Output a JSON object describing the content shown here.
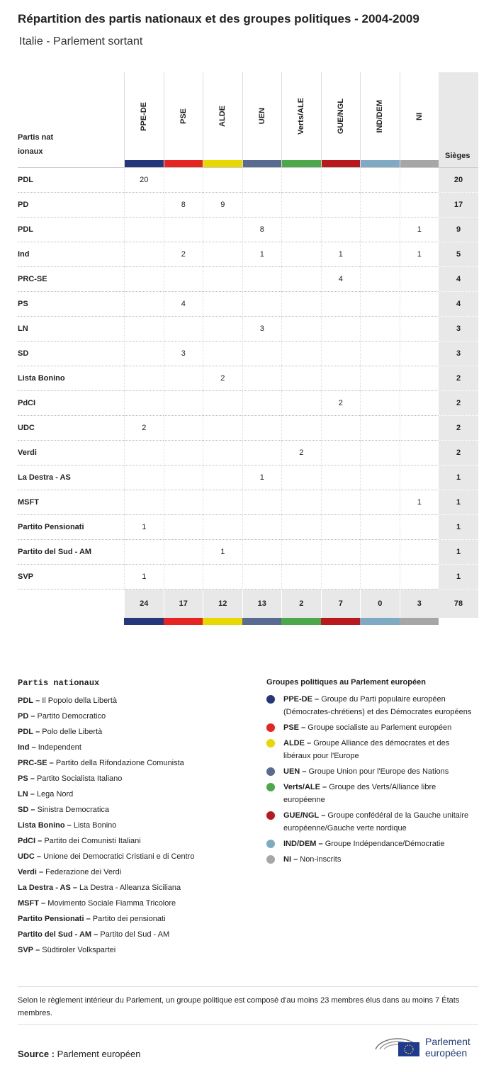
{
  "header": {
    "title": "Répartition des partis nationaux et des groupes politiques - 2004-2009",
    "subtitle": "Italie - Parlement sortant"
  },
  "table": {
    "corner": "Partis nationaux",
    "total_header": "Sièges",
    "groups": [
      {
        "name": "PPE-DE",
        "color": "#26367a"
      },
      {
        "name": "PSE",
        "color": "#e52521"
      },
      {
        "name": "ALDE",
        "color": "#e6d800"
      },
      {
        "name": "UEN",
        "color": "#5a6b92"
      },
      {
        "name": "Verts/ALE",
        "color": "#4ca84a"
      },
      {
        "name": "GUE/NGL",
        "color": "#b8191e"
      },
      {
        "name": "IND/DEM",
        "color": "#80a9c3"
      },
      {
        "name": "NI",
        "color": "#a6a6a6"
      }
    ],
    "rows": [
      {
        "party": "PDL",
        "cells": [
          20,
          null,
          null,
          null,
          null,
          null,
          null,
          null
        ],
        "total": 20
      },
      {
        "party": "PD",
        "cells": [
          null,
          8,
          9,
          null,
          null,
          null,
          null,
          null
        ],
        "total": 17
      },
      {
        "party": "PDL",
        "cells": [
          null,
          null,
          null,
          8,
          null,
          null,
          null,
          1
        ],
        "total": 9
      },
      {
        "party": "Ind",
        "cells": [
          null,
          2,
          null,
          1,
          null,
          1,
          null,
          1
        ],
        "total": 5
      },
      {
        "party": "PRC-SE",
        "cells": [
          null,
          null,
          null,
          null,
          null,
          4,
          null,
          null
        ],
        "total": 4
      },
      {
        "party": "PS",
        "cells": [
          null,
          4,
          null,
          null,
          null,
          null,
          null,
          null
        ],
        "total": 4
      },
      {
        "party": "LN",
        "cells": [
          null,
          null,
          null,
          3,
          null,
          null,
          null,
          null
        ],
        "total": 3
      },
      {
        "party": "SD",
        "cells": [
          null,
          3,
          null,
          null,
          null,
          null,
          null,
          null
        ],
        "total": 3
      },
      {
        "party": "Lista Bonino",
        "cells": [
          null,
          null,
          2,
          null,
          null,
          null,
          null,
          null
        ],
        "total": 2
      },
      {
        "party": "PdCI",
        "cells": [
          null,
          null,
          null,
          null,
          null,
          2,
          null,
          null
        ],
        "total": 2
      },
      {
        "party": "UDC",
        "cells": [
          2,
          null,
          null,
          null,
          null,
          null,
          null,
          null
        ],
        "total": 2
      },
      {
        "party": "Verdi",
        "cells": [
          null,
          null,
          null,
          null,
          2,
          null,
          null,
          null
        ],
        "total": 2
      },
      {
        "party": "La Destra - AS",
        "cells": [
          null,
          null,
          null,
          1,
          null,
          null,
          null,
          null
        ],
        "total": 1
      },
      {
        "party": "MSFT",
        "cells": [
          null,
          null,
          null,
          null,
          null,
          null,
          null,
          1
        ],
        "total": 1
      },
      {
        "party": "Partito Pensionati",
        "cells": [
          1,
          null,
          null,
          null,
          null,
          null,
          null,
          null
        ],
        "total": 1
      },
      {
        "party": "Partito del Sud - AM",
        "cells": [
          null,
          null,
          1,
          null,
          null,
          null,
          null,
          null
        ],
        "total": 1
      },
      {
        "party": "SVP",
        "cells": [
          1,
          null,
          null,
          null,
          null,
          null,
          null,
          null
        ],
        "total": 1
      }
    ],
    "totals": [
      24,
      17,
      12,
      13,
      2,
      7,
      0,
      3
    ],
    "grand_total": 78
  },
  "legend_parties": {
    "title": "Partis nationaux",
    "separator": "–",
    "items": [
      {
        "abbr": "PDL",
        "name": "Il Popolo della Libertà"
      },
      {
        "abbr": "PD",
        "name": "Partito Democratico"
      },
      {
        "abbr": "PDL",
        "name": "Polo delle Libertà"
      },
      {
        "abbr": "Ind",
        "name": "Independent"
      },
      {
        "abbr": "PRC-SE",
        "name": "Partito della Rifondazione Comunista"
      },
      {
        "abbr": "PS",
        "name": "Partito Socialista Italiano"
      },
      {
        "abbr": "LN",
        "name": "Lega Nord"
      },
      {
        "abbr": "SD",
        "name": "Sinistra Democratica"
      },
      {
        "abbr": "Lista Bonino",
        "name": "Lista Bonino"
      },
      {
        "abbr": "PdCI",
        "name": "Partito dei Comunisti Italiani"
      },
      {
        "abbr": "UDC",
        "name": "Unione dei Democratici Cristiani e di Centro"
      },
      {
        "abbr": "Verdi",
        "name": "Federazione dei Verdi"
      },
      {
        "abbr": "La Destra - AS",
        "name": "La Destra - Alleanza Siciliana"
      },
      {
        "abbr": "MSFT",
        "name": "Movimento Sociale Fiamma Tricolore"
      },
      {
        "abbr": "Partito Pensionati",
        "name": "Partito dei pensionati"
      },
      {
        "abbr": "Partito del Sud - AM",
        "name": "Partito del Sud - AM"
      },
      {
        "abbr": "SVP",
        "name": "Südtiroler Volkspartei"
      }
    ]
  },
  "legend_groups": {
    "title": "Groupes politiques au Parlement européen",
    "separator": "–",
    "items": [
      {
        "abbr": "PPE-DE",
        "name": "Groupe du Parti populaire européen (Démocrates-chrétiens) et des Démocrates européens"
      },
      {
        "abbr": "PSE",
        "name": "Groupe socialiste au Parlement européen"
      },
      {
        "abbr": "ALDE",
        "name": "Groupe Alliance des démocrates et des libéraux pour l'Europe"
      },
      {
        "abbr": "UEN",
        "name": "Groupe Union pour l'Europe des Nations"
      },
      {
        "abbr": "Verts/ALE",
        "name": "Groupe des Verts/Alliance libre européenne"
      },
      {
        "abbr": "GUE/NGL",
        "name": "Groupe confédéral de la Gauche unitaire européenne/Gauche verte nordique"
      },
      {
        "abbr": "IND/DEM",
        "name": "Groupe Indépendance/Démocratie"
      },
      {
        "abbr": "NI",
        "name": "Non-inscrits"
      }
    ]
  },
  "note": "Selon le règlement intérieur du Parlement, un groupe politique est composé d'au moins 23 membres élus dans au moins 7 États membres.",
  "source": {
    "label": "Source :",
    "text": "Parlement européen"
  },
  "logo": {
    "line1": "Parlement",
    "line2": "européen"
  }
}
